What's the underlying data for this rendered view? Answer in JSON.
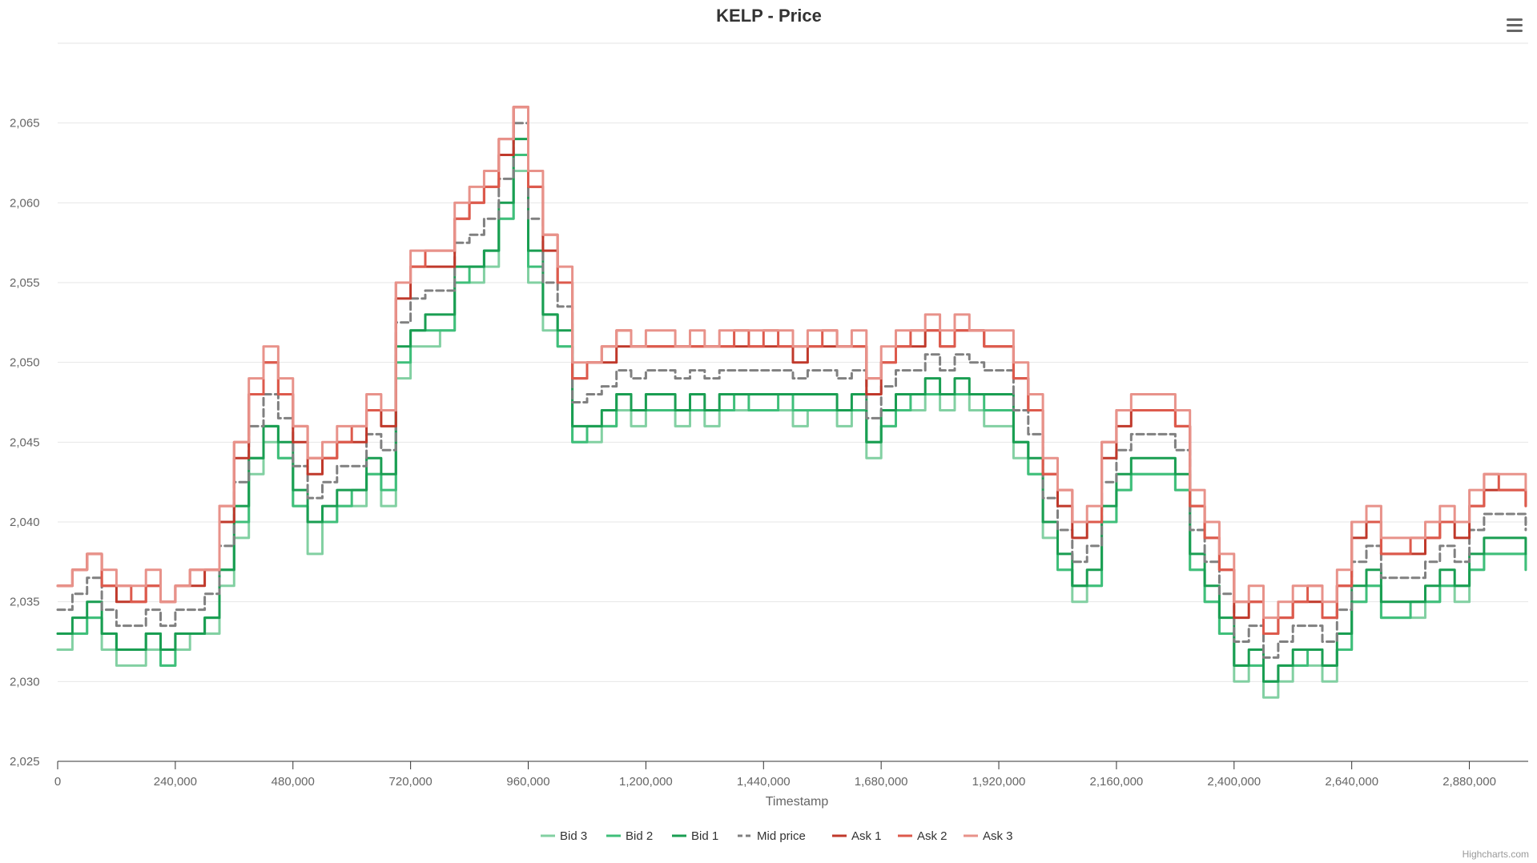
{
  "menu_icon": "hamburger-menu-icon",
  "credits": "Highcharts.com",
  "chart_data": {
    "type": "line",
    "title": "KELP - Price",
    "xlabel": "Timestamp",
    "ylabel": "",
    "xlim": [
      0,
      3000000
    ],
    "ylim": [
      2025,
      2070
    ],
    "x_ticks": [
      0,
      240000,
      480000,
      720000,
      960000,
      1200000,
      1440000,
      1680000,
      1920000,
      2160000,
      2400000,
      2640000,
      2880000
    ],
    "x_tick_labels": [
      "0",
      "240,000",
      "480,000",
      "720,000",
      "960,000",
      "1,200,000",
      "1,440,000",
      "1,680,000",
      "1,920,000",
      "2,160,000",
      "2,400,000",
      "2,640,000",
      "2,880,000"
    ],
    "y_ticks": [
      2025,
      2030,
      2035,
      2040,
      2045,
      2050,
      2055,
      2060,
      2065
    ],
    "y_tick_labels": [
      "2,025",
      "2,030",
      "2,035",
      "2,040",
      "2,045",
      "2,050",
      "2,055",
      "2,060",
      "2,065"
    ],
    "grid": true,
    "legend_position": "bottom-center",
    "x": [
      0,
      30000,
      60000,
      90000,
      120000,
      150000,
      180000,
      210000,
      240000,
      270000,
      300000,
      330000,
      360000,
      390000,
      420000,
      450000,
      480000,
      510000,
      540000,
      570000,
      600000,
      630000,
      660000,
      690000,
      720000,
      750000,
      780000,
      810000,
      840000,
      870000,
      900000,
      930000,
      960000,
      990000,
      1020000,
      1050000,
      1080000,
      1110000,
      1140000,
      1170000,
      1200000,
      1230000,
      1260000,
      1290000,
      1320000,
      1350000,
      1380000,
      1410000,
      1440000,
      1470000,
      1500000,
      1530000,
      1560000,
      1590000,
      1620000,
      1650000,
      1680000,
      1710000,
      1740000,
      1770000,
      1800000,
      1830000,
      1860000,
      1890000,
      1920000,
      1950000,
      1980000,
      2010000,
      2040000,
      2070000,
      2100000,
      2130000,
      2160000,
      2190000,
      2220000,
      2250000,
      2280000,
      2310000,
      2340000,
      2370000,
      2400000,
      2430000,
      2460000,
      2490000,
      2520000,
      2550000,
      2580000,
      2610000,
      2640000,
      2670000,
      2700000,
      2730000,
      2760000,
      2790000,
      2820000,
      2850000,
      2880000,
      2910000,
      2940000,
      2970000,
      2995000
    ],
    "series": [
      {
        "name": "Bid 3",
        "color": "#82d0a2",
        "dash": "solid",
        "values": [
          2032,
          2033,
          2034,
          2032,
          2031,
          2031,
          2032,
          2031,
          2032,
          2033,
          2033,
          2036,
          2039,
          2043,
          2045,
          2044,
          2041,
          2038,
          2040,
          2041,
          2041,
          2043,
          2041,
          2049,
          2051,
          2051,
          2052,
          2055,
          2055,
          2056,
          2059,
          2062,
          2055,
          2052,
          2051,
          2045,
          2045,
          2046,
          2047,
          2046,
          2047,
          2047,
          2046,
          2047,
          2046,
          2047,
          2047,
          2047,
          2047,
          2047,
          2046,
          2047,
          2047,
          2046,
          2047,
          2044,
          2046,
          2047,
          2047,
          2048,
          2047,
          2048,
          2047,
          2046,
          2046,
          2044,
          2043,
          2039,
          2037,
          2035,
          2036,
          2040,
          2042,
          2043,
          2043,
          2043,
          2042,
          2037,
          2035,
          2033,
          2030,
          2031,
          2029,
          2030,
          2031,
          2031,
          2030,
          2032,
          2035,
          2036,
          2034,
          2034,
          2034,
          2035,
          2036,
          2035,
          2037,
          2038,
          2038,
          2038,
          2037
        ]
      },
      {
        "name": "Bid 2",
        "color": "#3fbf7a",
        "dash": "solid",
        "values": [
          2033,
          2033,
          2034,
          2033,
          2032,
          2032,
          2033,
          2031,
          2033,
          2033,
          2034,
          2037,
          2040,
          2044,
          2046,
          2044,
          2041,
          2040,
          2040,
          2041,
          2042,
          2043,
          2042,
          2050,
          2052,
          2052,
          2052,
          2055,
          2056,
          2057,
          2059,
          2063,
          2056,
          2053,
          2051,
          2045,
          2046,
          2046,
          2048,
          2047,
          2047,
          2047,
          2047,
          2047,
          2047,
          2047,
          2048,
          2047,
          2047,
          2048,
          2047,
          2047,
          2047,
          2047,
          2047,
          2045,
          2046,
          2047,
          2048,
          2048,
          2048,
          2048,
          2048,
          2047,
          2047,
          2045,
          2043,
          2040,
          2037,
          2036,
          2036,
          2040,
          2042,
          2043,
          2043,
          2043,
          2042,
          2037,
          2035,
          2033,
          2031,
          2031,
          2030,
          2031,
          2031,
          2032,
          2031,
          2032,
          2035,
          2036,
          2034,
          2034,
          2035,
          2035,
          2036,
          2036,
          2037,
          2038,
          2038,
          2038,
          2037
        ]
      },
      {
        "name": "Bid 1",
        "color": "#1a9e52",
        "dash": "solid",
        "values": [
          2033,
          2034,
          2035,
          2033,
          2032,
          2032,
          2033,
          2032,
          2033,
          2033,
          2034,
          2037,
          2041,
          2044,
          2046,
          2045,
          2042,
          2040,
          2041,
          2042,
          2042,
          2044,
          2043,
          2051,
          2052,
          2053,
          2053,
          2056,
          2056,
          2057,
          2060,
          2064,
          2057,
          2053,
          2052,
          2046,
          2046,
          2047,
          2048,
          2047,
          2048,
          2048,
          2047,
          2048,
          2047,
          2048,
          2048,
          2048,
          2048,
          2048,
          2048,
          2048,
          2048,
          2047,
          2048,
          2045,
          2047,
          2048,
          2048,
          2049,
          2048,
          2049,
          2048,
          2048,
          2048,
          2045,
          2044,
          2040,
          2038,
          2036,
          2037,
          2041,
          2043,
          2044,
          2044,
          2044,
          2043,
          2038,
          2036,
          2034,
          2031,
          2032,
          2030,
          2031,
          2032,
          2032,
          2031,
          2033,
          2036,
          2037,
          2035,
          2035,
          2035,
          2036,
          2037,
          2036,
          2038,
          2039,
          2039,
          2039,
          2038
        ]
      },
      {
        "name": "Mid price",
        "color": "#808080",
        "dash": "dash",
        "values": [
          2034.5,
          2035.5,
          2036.5,
          2034.5,
          2033.5,
          2033.5,
          2034.5,
          2033.5,
          2034.5,
          2034.5,
          2035.5,
          2038.5,
          2042.5,
          2046,
          2048,
          2046.5,
          2043.5,
          2041.5,
          2042.5,
          2043.5,
          2043.5,
          2045.5,
          2044.5,
          2052.5,
          2054,
          2054.5,
          2054.5,
          2057.5,
          2058,
          2059,
          2061.5,
          2065,
          2059,
          2055,
          2053.5,
          2047.5,
          2048,
          2048.5,
          2049.5,
          2049,
          2049.5,
          2049.5,
          2049,
          2049.5,
          2049,
          2049.5,
          2049.5,
          2049.5,
          2049.5,
          2049.5,
          2049,
          2049.5,
          2049.5,
          2049,
          2049.5,
          2046.5,
          2048.5,
          2049.5,
          2049.5,
          2050.5,
          2049.5,
          2050.5,
          2050,
          2049.5,
          2049.5,
          2047,
          2045.5,
          2041.5,
          2039.5,
          2037.5,
          2038.5,
          2042.5,
          2044.5,
          2045.5,
          2045.5,
          2045.5,
          2044.5,
          2039.5,
          2037.5,
          2035.5,
          2032.5,
          2033.5,
          2031.5,
          2032.5,
          2033.5,
          2033.5,
          2032.5,
          2034.5,
          2037.5,
          2038.5,
          2036.5,
          2036.5,
          2036.5,
          2037.5,
          2038.5,
          2037.5,
          2039.5,
          2040.5,
          2040.5,
          2040.5,
          2039.5
        ]
      },
      {
        "name": "Ask 1",
        "color": "#c0392b",
        "dash": "solid",
        "values": [
          2036,
          2037,
          2038,
          2036,
          2035,
          2035,
          2036,
          2035,
          2036,
          2036,
          2037,
          2040,
          2044,
          2048,
          2050,
          2048,
          2045,
          2043,
          2044,
          2045,
          2045,
          2047,
          2046,
          2054,
          2056,
          2056,
          2056,
          2059,
          2060,
          2061,
          2063,
          2066,
          2061,
          2057,
          2055,
          2049,
          2050,
          2050,
          2051,
          2051,
          2051,
          2051,
          2051,
          2051,
          2051,
          2051,
          2051,
          2051,
          2051,
          2051,
          2050,
          2051,
          2051,
          2051,
          2051,
          2048,
          2050,
          2051,
          2051,
          2052,
          2051,
          2052,
          2052,
          2051,
          2051,
          2049,
          2047,
          2043,
          2041,
          2039,
          2040,
          2044,
          2046,
          2047,
          2047,
          2047,
          2046,
          2041,
          2039,
          2037,
          2034,
          2035,
          2033,
          2034,
          2035,
          2035,
          2034,
          2036,
          2039,
          2040,
          2038,
          2038,
          2038,
          2039,
          2040,
          2039,
          2041,
          2042,
          2042,
          2042,
          2041
        ]
      },
      {
        "name": "Ask 2",
        "color": "#dd5a4c",
        "dash": "solid",
        "values": [
          2036,
          2037,
          2038,
          2036,
          2036,
          2035,
          2036,
          2035,
          2036,
          2037,
          2037,
          2041,
          2045,
          2048,
          2050,
          2048,
          2046,
          2044,
          2044,
          2045,
          2046,
          2047,
          2047,
          2055,
          2056,
          2057,
          2057,
          2059,
          2060,
          2061,
          2064,
          2066,
          2061,
          2058,
          2055,
          2049,
          2050,
          2051,
          2052,
          2051,
          2051,
          2051,
          2051,
          2051,
          2051,
          2051,
          2052,
          2051,
          2052,
          2051,
          2051,
          2051,
          2052,
          2051,
          2051,
          2049,
          2050,
          2051,
          2052,
          2052,
          2051,
          2052,
          2052,
          2051,
          2051,
          2049,
          2047,
          2043,
          2042,
          2040,
          2040,
          2045,
          2047,
          2047,
          2047,
          2047,
          2046,
          2041,
          2039,
          2037,
          2035,
          2035,
          2033,
          2034,
          2035,
          2036,
          2034,
          2036,
          2040,
          2040,
          2038,
          2038,
          2039,
          2039,
          2040,
          2040,
          2041,
          2043,
          2042,
          2042,
          2041
        ]
      },
      {
        "name": "Ask 3",
        "color": "#e8928a",
        "dash": "solid",
        "values": [
          2036,
          2037,
          2038,
          2037,
          2036,
          2036,
          2037,
          2035,
          2036,
          2037,
          2037,
          2041,
          2045,
          2049,
          2051,
          2049,
          2046,
          2044,
          2045,
          2046,
          2046,
          2048,
          2047,
          2055,
          2057,
          2057,
          2057,
          2060,
          2061,
          2062,
          2064,
          2066,
          2062,
          2058,
          2056,
          2050,
          2050,
          2051,
          2052,
          2051,
          2052,
          2052,
          2051,
          2052,
          2051,
          2052,
          2052,
          2052,
          2052,
          2052,
          2051,
          2052,
          2052,
          2051,
          2052,
          2049,
          2051,
          2052,
          2052,
          2053,
          2052,
          2053,
          2052,
          2052,
          2052,
          2050,
          2048,
          2044,
          2042,
          2040,
          2041,
          2045,
          2047,
          2048,
          2048,
          2048,
          2047,
          2042,
          2040,
          2038,
          2035,
          2036,
          2034,
          2035,
          2036,
          2036,
          2035,
          2037,
          2040,
          2041,
          2039,
          2039,
          2039,
          2040,
          2041,
          2040,
          2042,
          2043,
          2043,
          2043,
          2042
        ]
      }
    ]
  }
}
